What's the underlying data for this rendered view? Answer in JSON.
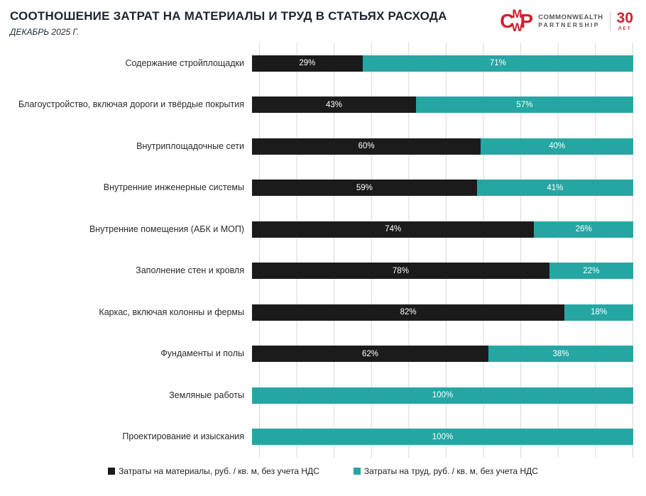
{
  "header": {
    "title": "СООТНОШЕНИЕ ЗАТРАТ НА МАТЕРИАЛЫ И ТРУД В СТАТЬЯХ РАСХОДА",
    "subtitle": "ДЕКАБРЬ 2025 Г."
  },
  "logo": {
    "monogram_c": "C",
    "monogram_m": "M",
    "monogram_w": "W",
    "monogram_p": "P",
    "company_line1": "COMMONWEALTH",
    "company_line2": "PARTNERSHIP",
    "anniversary_number": "30",
    "anniversary_label": "ЛЕТ"
  },
  "theme": {
    "brand_red": "#d0202e",
    "logo_gray": "#55565a",
    "title_color": "#1b2631",
    "grid_color": "#d8d8d8",
    "materials_color": "#1b1b1b",
    "labor_color": "#26a6a3"
  },
  "chart_data": {
    "type": "bar",
    "orientation": "horizontal",
    "stacked": true,
    "value_format": "percent",
    "xlim": [
      0,
      100
    ],
    "gridline_interval": 10,
    "grid": true,
    "legend_position": "bottom",
    "title": "СООТНОШЕНИЕ ЗАТРАТ НА МАТЕРИАЛЫ И ТРУД В СТАТЬЯХ РАСХОДА",
    "subtitle": "ДЕКАБРЬ 2025 Г.",
    "categories": [
      "Содержание стройплощадки",
      "Благоустройство, включая дороги и твёрдые покрытия",
      "Внутриплощадочные сети",
      "Внутренние инженерные системы",
      "Внутренние помещения (АБК и МОП)",
      "Заполнение стен и кровля",
      "Каркас, включая колонны и фермы",
      "Фундаменты и полы",
      "Земляные работы",
      "Проектирование и изыскания"
    ],
    "series": [
      {
        "key": "materials",
        "name": "Затраты на материалы, руб. / кв. м, без учета НДС",
        "color": "#1b1b1b",
        "values": [
          29,
          43,
          60,
          59,
          74,
          78,
          82,
          62,
          0,
          0
        ]
      },
      {
        "key": "labor",
        "name": "Затраты на труд, руб. / кв. м, без учета НДС",
        "color": "#26a6a3",
        "values": [
          71,
          57,
          40,
          41,
          26,
          22,
          18,
          38,
          100,
          100
        ]
      }
    ]
  },
  "legend": {
    "items": [
      {
        "key": "materials",
        "label": "Затраты на материалы, руб. / кв. м, без учета НДС",
        "color": "#1b1b1b"
      },
      {
        "key": "labor",
        "label": "Затраты на труд, руб. / кв. м, без учета НДС",
        "color": "#26a6a3"
      }
    ]
  }
}
